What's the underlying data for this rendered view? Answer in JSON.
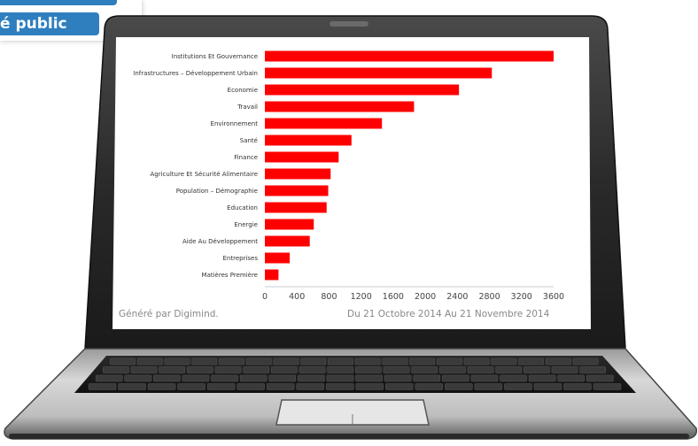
{
  "corner_tab": {
    "label": "é public"
  },
  "footer": {
    "generated_by": "Généré par Digimind.",
    "date_range": "Du 21 Octobre 2014 Au 21 Novembre 2014"
  },
  "colors": {
    "bar": "#ff0000",
    "tab": "#2f7fbf"
  },
  "chart_data": {
    "type": "bar",
    "orientation": "horizontal",
    "categories": [
      "Institutions Et Gouvernance",
      "Infrastructures – Développement Urbain",
      "Economie",
      "Travail",
      "Environnement",
      "Santé",
      "Finance",
      "Agriculture Et Sécurité Alimentaire",
      "Population – Démographie",
      "Education",
      "Energie",
      "Aide Au Développement",
      "Entreprises",
      "Matières Première"
    ],
    "values": [
      3600,
      2830,
      2420,
      1860,
      1460,
      1080,
      920,
      820,
      790,
      770,
      610,
      560,
      310,
      170
    ],
    "xlim": [
      0,
      3600
    ],
    "xticks": [
      "0",
      "400",
      "800",
      "1200",
      "1600",
      "2000",
      "2400",
      "2800",
      "3200",
      "3600"
    ],
    "grid": false,
    "legend": "none"
  }
}
